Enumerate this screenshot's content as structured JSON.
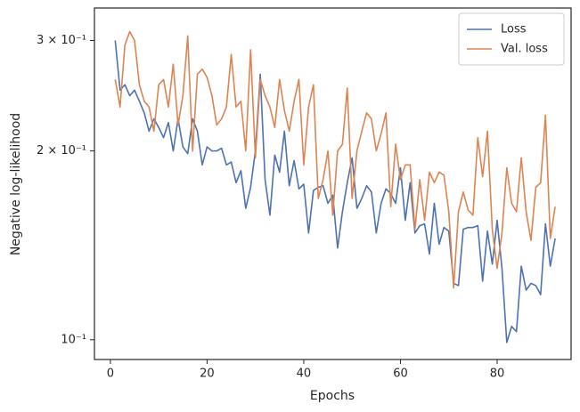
{
  "chart_data": {
    "type": "line",
    "xlabel": "Epochs",
    "ylabel": "Negative log-likelihood",
    "x": [
      1,
      2,
      3,
      4,
      5,
      6,
      7,
      8,
      9,
      10,
      11,
      12,
      13,
      14,
      15,
      16,
      17,
      18,
      19,
      20,
      21,
      22,
      23,
      24,
      25,
      26,
      27,
      28,
      29,
      30,
      31,
      32,
      33,
      34,
      35,
      36,
      37,
      38,
      39,
      40,
      41,
      42,
      43,
      44,
      45,
      46,
      47,
      48,
      49,
      50,
      51,
      52,
      53,
      54,
      55,
      56,
      57,
      58,
      59,
      60,
      61,
      62,
      63,
      64,
      65,
      66,
      67,
      68,
      69,
      70,
      71,
      72,
      73,
      74,
      75,
      76,
      77,
      78,
      79,
      80,
      81,
      82,
      83,
      84,
      85,
      86,
      87,
      88,
      89,
      90,
      91,
      92
    ],
    "series": [
      {
        "name": "Loss",
        "color": "#4c72b0",
        "values": [
          0.3,
          0.25,
          0.255,
          0.245,
          0.25,
          0.24,
          0.23,
          0.215,
          0.225,
          0.218,
          0.21,
          0.222,
          0.2,
          0.225,
          0.203,
          0.198,
          0.225,
          0.215,
          0.19,
          0.203,
          0.2,
          0.2,
          0.202,
          0.19,
          0.192,
          0.178,
          0.186,
          0.162,
          0.175,
          0.2,
          0.265,
          0.18,
          0.158,
          0.197,
          0.185,
          0.215,
          0.176,
          0.193,
          0.174,
          0.177,
          0.148,
          0.173,
          0.175,
          0.176,
          0.165,
          0.17,
          0.14,
          0.16,
          0.178,
          0.195,
          0.162,
          0.168,
          0.176,
          0.172,
          0.148,
          0.165,
          0.174,
          0.171,
          0.165,
          0.188,
          0.155,
          0.178,
          0.148,
          0.152,
          0.153,
          0.137,
          0.165,
          0.142,
          0.151,
          0.149,
          0.123,
          0.122,
          0.15,
          0.151,
          0.151,
          0.152,
          0.124,
          0.149,
          0.132,
          0.155,
          0.13,
          0.099,
          0.105,
          0.103,
          0.131,
          0.12,
          0.123,
          0.122,
          0.118,
          0.153,
          0.131,
          0.145
        ]
      },
      {
        "name": "Val. loss",
        "color": "#dd8452",
        "values": [
          0.26,
          0.235,
          0.295,
          0.31,
          0.3,
          0.255,
          0.24,
          0.235,
          0.215,
          0.255,
          0.26,
          0.235,
          0.275,
          0.22,
          0.245,
          0.305,
          0.2,
          0.265,
          0.27,
          0.262,
          0.245,
          0.22,
          0.225,
          0.235,
          0.285,
          0.235,
          0.24,
          0.2,
          0.29,
          0.195,
          0.26,
          0.245,
          0.235,
          0.218,
          0.26,
          0.232,
          0.215,
          0.24,
          0.26,
          0.19,
          0.235,
          0.255,
          0.168,
          0.18,
          0.2,
          0.158,
          0.2,
          0.205,
          0.252,
          0.168,
          0.2,
          0.215,
          0.23,
          0.225,
          0.2,
          0.213,
          0.23,
          0.163,
          0.205,
          0.18,
          0.19,
          0.19,
          0.15,
          0.18,
          0.155,
          0.185,
          0.178,
          0.185,
          0.183,
          0.16,
          0.121,
          0.16,
          0.172,
          0.161,
          0.158,
          0.21,
          0.182,
          0.215,
          0.15,
          0.13,
          0.148,
          0.188,
          0.165,
          0.16,
          0.195,
          0.16,
          0.144,
          0.175,
          0.178,
          0.228,
          0.145,
          0.163
        ]
      }
    ],
    "xlim": [
      -3.3,
      95.3
    ],
    "xticks": [
      0,
      20,
      40,
      60,
      80
    ],
    "ylim": [
      0.093,
      0.338
    ],
    "yscale": "log",
    "yticks": [
      {
        "value": 0.1,
        "label": "10⁻¹"
      },
      {
        "value": 0.2,
        "label": "2 × 10⁻¹"
      },
      {
        "value": 0.3,
        "label": "3 × 10⁻¹"
      }
    ],
    "legend": "upper right"
  }
}
